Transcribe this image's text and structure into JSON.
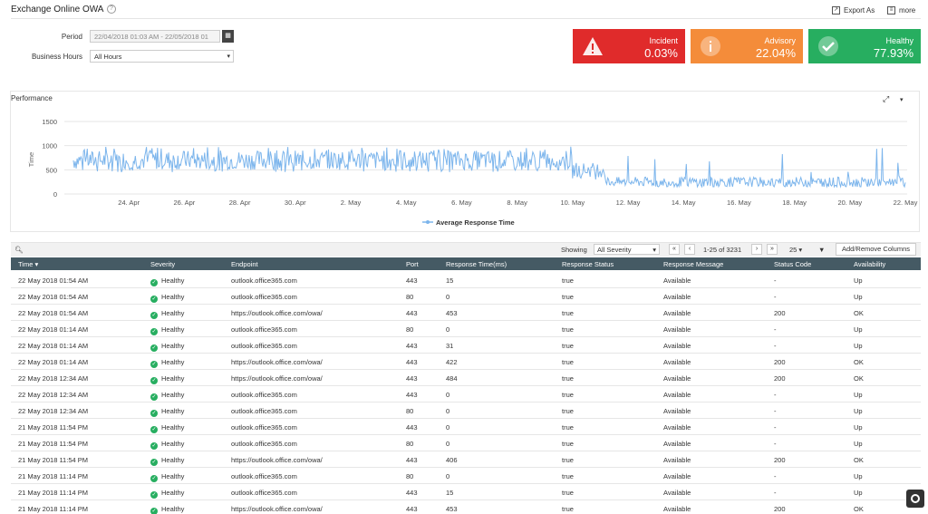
{
  "header": {
    "title": "Exchange Online OWA",
    "export_label": "Export As",
    "more_label": "more"
  },
  "filters": {
    "period_label": "Period",
    "period_value": "22/04/2018 01:03 AM - 22/05/2018 01",
    "business_hours_label": "Business Hours",
    "business_hours_value": "All Hours"
  },
  "cards": [
    {
      "label": "Incident",
      "value": "0.03%",
      "color": "#e02b2b",
      "icon": "warning-icon"
    },
    {
      "label": "Advisory",
      "value": "22.04%",
      "color": "#f48c3a",
      "icon": "info-icon"
    },
    {
      "label": "Healthy",
      "value": "77.93%",
      "color": "#27ae60",
      "icon": "check-icon"
    }
  ],
  "performance": {
    "title": "Performance"
  },
  "chart_data": {
    "type": "line",
    "ylabel": "Time",
    "ylim": [
      0,
      1500
    ],
    "yticks": [
      0,
      500,
      1000,
      1500
    ],
    "x_tick_labels": [
      "24. Apr",
      "26. Apr",
      "28. Apr",
      "30. Apr",
      "2. May",
      "4. May",
      "6. May",
      "8. May",
      "10. May",
      "12. May",
      "14. May",
      "16. May",
      "18. May",
      "20. May",
      "22. May"
    ],
    "x_range": [
      "22/04/2018",
      "22/05/2018"
    ],
    "series": [
      {
        "name": "Average Response Time",
        "color": "#7cb5ec",
        "segments": [
          {
            "from": "22. Apr",
            "to": "10. May",
            "min": 450,
            "max": 980,
            "typical_low": 500,
            "typical_high": 900
          },
          {
            "from": "10. May",
            "to": "11. May",
            "min": 300,
            "max": 800,
            "typical_low": 350,
            "typical_high": 650
          },
          {
            "from": "11. May",
            "to": "22. May",
            "min": 150,
            "max": 1030,
            "typical_low": 150,
            "typical_high": 350
          }
        ]
      }
    ],
    "legend": "bottom-center"
  },
  "table_toolbar": {
    "showing_label": "Showing",
    "severity_filter": "All Severity",
    "page_info": "1-25 of 3231",
    "page_size": "25",
    "add_remove_label": "Add/Remove Columns"
  },
  "table": {
    "columns": [
      "Time",
      "Severity",
      "Endpoint",
      "Port",
      "Response Time(ms)",
      "Response Status",
      "Response Message",
      "Status Code",
      "Availability"
    ],
    "rows": [
      [
        "22 May 2018 01:54 AM",
        "Healthy",
        "outlook.office365.com",
        "443",
        "15",
        "true",
        "Available",
        "-",
        "Up"
      ],
      [
        "22 May 2018 01:54 AM",
        "Healthy",
        "outlook.office365.com",
        "80",
        "0",
        "true",
        "Available",
        "-",
        "Up"
      ],
      [
        "22 May 2018 01:54 AM",
        "Healthy",
        "https://outlook.office.com/owa/",
        "443",
        "453",
        "true",
        "Available",
        "200",
        "OK"
      ],
      [
        "22 May 2018 01:14 AM",
        "Healthy",
        "outlook.office365.com",
        "80",
        "0",
        "true",
        "Available",
        "-",
        "Up"
      ],
      [
        "22 May 2018 01:14 AM",
        "Healthy",
        "outlook.office365.com",
        "443",
        "31",
        "true",
        "Available",
        "-",
        "Up"
      ],
      [
        "22 May 2018 01:14 AM",
        "Healthy",
        "https://outlook.office.com/owa/",
        "443",
        "422",
        "true",
        "Available",
        "200",
        "OK"
      ],
      [
        "22 May 2018 12:34 AM",
        "Healthy",
        "https://outlook.office.com/owa/",
        "443",
        "484",
        "true",
        "Available",
        "200",
        "OK"
      ],
      [
        "22 May 2018 12:34 AM",
        "Healthy",
        "outlook.office365.com",
        "443",
        "0",
        "true",
        "Available",
        "-",
        "Up"
      ],
      [
        "22 May 2018 12:34 AM",
        "Healthy",
        "outlook.office365.com",
        "80",
        "0",
        "true",
        "Available",
        "-",
        "Up"
      ],
      [
        "21 May 2018 11:54 PM",
        "Healthy",
        "outlook.office365.com",
        "443",
        "0",
        "true",
        "Available",
        "-",
        "Up"
      ],
      [
        "21 May 2018 11:54 PM",
        "Healthy",
        "outlook.office365.com",
        "80",
        "0",
        "true",
        "Available",
        "-",
        "Up"
      ],
      [
        "21 May 2018 11:54 PM",
        "Healthy",
        "https://outlook.office.com/owa/",
        "443",
        "406",
        "true",
        "Available",
        "200",
        "OK"
      ],
      [
        "21 May 2018 11:14 PM",
        "Healthy",
        "outlook.office365.com",
        "80",
        "0",
        "true",
        "Available",
        "-",
        "Up"
      ],
      [
        "21 May 2018 11:14 PM",
        "Healthy",
        "outlook.office365.com",
        "443",
        "15",
        "true",
        "Available",
        "-",
        "Up"
      ],
      [
        "21 May 2018 11:14 PM",
        "Healthy",
        "https://outlook.office.com/owa/",
        "443",
        "453",
        "true",
        "Available",
        "200",
        "OK"
      ]
    ]
  }
}
